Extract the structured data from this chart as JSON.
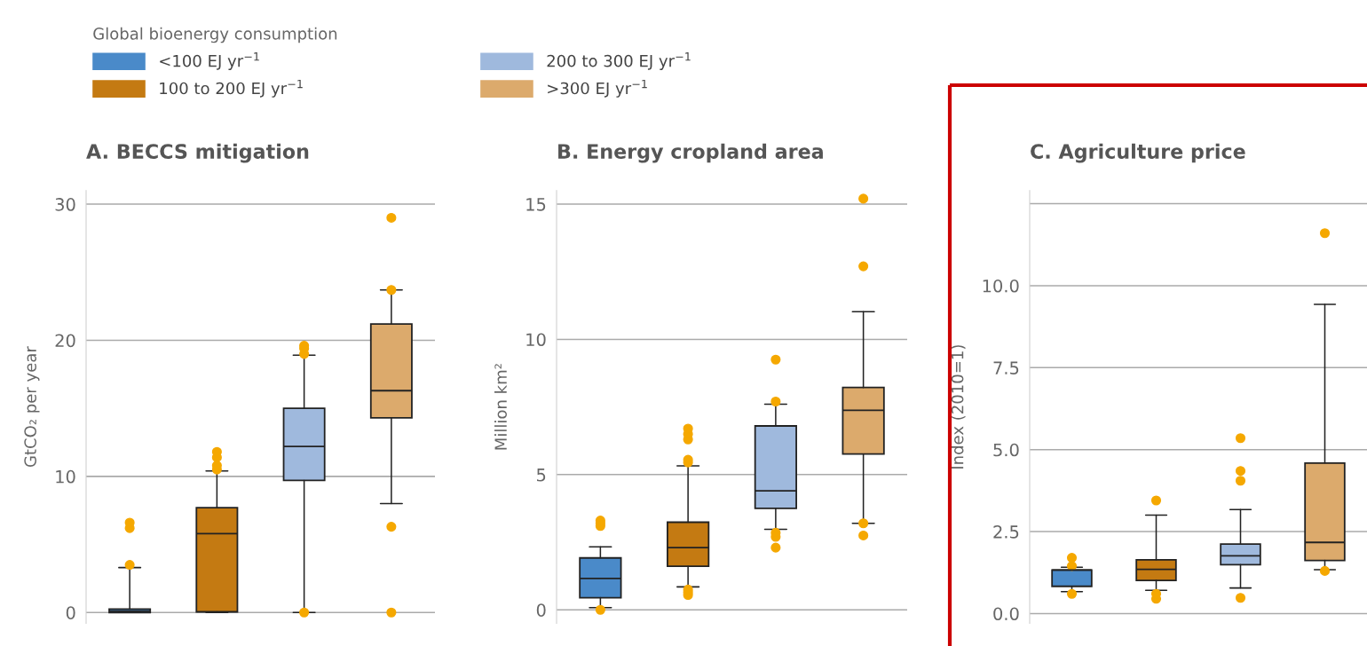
{
  "chart_data": [
    {
      "type": "box",
      "title": "A. BECCS mitigation",
      "ylabel": "GtCO₂ per year",
      "legend": "top right",
      "legend_title": "Global bioenergy consumption",
      "categories": [
        null,
        null,
        null,
        null
      ],
      "grid": "y",
      "tick_labels": "y",
      "ylim": [
        -0.8,
        31
      ],
      "yticks": [
        0,
        10,
        20,
        30
      ],
      "series": [
        {
          "name": "<100 EJ yr$^{−1}$",
          "color": "#4a8ac9",
          "boxes": [
            {
              "low": 0,
              "q1": 0,
              "median": 0.1,
              "q3": 0.25,
              "high": 3.3,
              "outliers": [
                3.5,
                6.2,
                6.6
              ]
            },
            null,
            null,
            null
          ]
        },
        {
          "name": "100 to 200 EJ yr$^{−1}$",
          "color": "#c47a12",
          "boxes": [
            null,
            {
              "low": 0,
              "q1": 0.05,
              "median": 5.8,
              "q3": 7.7,
              "high": 10.4,
              "outliers": [
                10.5,
                10.8,
                11.4,
                11.8
              ]
            },
            null,
            null
          ]
        },
        {
          "name": "200 to 300 EJ yr$^{−1}$",
          "color": "#9fb9dd",
          "boxes": [
            null,
            null,
            {
              "low": 0,
              "q1": 9.7,
              "median": 12.2,
              "q3": 15.0,
              "high": 18.9,
              "outliers": [
                0,
                19.0,
                19.4,
                19.6
              ]
            },
            null
          ]
        },
        {
          "name": ">300 EJ yr$^{−1}$",
          "color": "#dcaa6c",
          "boxes": [
            null,
            null,
            null,
            {
              "low": 8,
              "q1": 14.3,
              "median": 16.3,
              "q3": 21.2,
              "high": 23.7,
              "outliers": [
                0,
                6.3,
                23.7,
                29
              ]
            }
          ]
        }
      ]
    },
    {
      "type": "box",
      "title": "B. Energy cropland area",
      "ylabel": "Million km²",
      "categories": [
        null,
        null,
        null,
        null
      ],
      "grid": "y",
      "tick_labels": "y",
      "ylim": [
        -0.5,
        15.5
      ],
      "yticks": [
        0,
        5,
        10,
        15
      ],
      "series": [
        {
          "color": "#4a8ac9",
          "boxes": [
            {
              "low": 0.08,
              "q1": 0.45,
              "median": 1.16,
              "q3": 1.92,
              "high": 2.33,
              "outliers": [
                0,
                3.1,
                3.2,
                3.3
              ]
            },
            null,
            null,
            null
          ]
        },
        {
          "color": "#c47a12",
          "boxes": [
            null,
            {
              "low": 0.85,
              "q1": 1.61,
              "median": 2.3,
              "q3": 3.24,
              "high": 5.32,
              "outliers": [
                0.55,
                0.65,
                0.75,
                5.45,
                5.55,
                6.3,
                6.5,
                6.7
              ]
            },
            null,
            null
          ]
        },
        {
          "color": "#9fb9dd",
          "boxes": [
            null,
            null,
            {
              "low": 2.98,
              "q1": 3.75,
              "median": 4.4,
              "q3": 6.8,
              "high": 7.6,
              "outliers": [
                2.3,
                2.7,
                2.85,
                7.7,
                9.25
              ]
            },
            null
          ]
        },
        {
          "color": "#dcaa6c",
          "boxes": [
            null,
            null,
            null,
            {
              "low": 3.2,
              "q1": 5.76,
              "median": 7.38,
              "q3": 8.22,
              "high": 11.02,
              "outliers": [
                2.75,
                3.2,
                12.7,
                15.2
              ]
            }
          ]
        }
      ]
    },
    {
      "type": "box",
      "title": "C. Agriculture price",
      "ylabel": "Index (2010=1)",
      "categories": [
        null,
        null,
        null,
        null
      ],
      "grid": "y",
      "tick_labels": "y",
      "ylim": [
        -0.3,
        12.9
      ],
      "yticks": [
        {
          "value": 0,
          "label": "0.0"
        },
        2.5,
        {
          "value": 5,
          "label": "5.0"
        },
        7.5,
        {
          "value": 10,
          "label": "10.0"
        },
        {
          "value": 12.5,
          "label": null
        }
      ],
      "series": [
        {
          "color": "#4a8ac9",
          "boxes": [
            {
              "low": 0.67,
              "q1": 0.83,
              "median": 1.33,
              "q3": 1.33,
              "high": 1.41,
              "outliers": [
                0.6,
                1.45,
                1.7
              ]
            },
            null,
            null,
            null
          ]
        },
        {
          "color": "#c47a12",
          "boxes": [
            null,
            {
              "low": 0.71,
              "q1": 1.01,
              "median": 1.35,
              "q3": 1.64,
              "high": 3.0,
              "outliers": [
                0.45,
                0.6,
                3.45
              ]
            },
            null,
            null
          ]
        },
        {
          "color": "#9fb9dd",
          "boxes": [
            null,
            null,
            {
              "low": 0.78,
              "q1": 1.49,
              "median": 1.76,
              "q3": 2.12,
              "high": 3.17,
              "outliers": [
                0.48,
                4.05,
                4.35,
                5.35
              ]
            },
            null
          ]
        },
        {
          "color": "#dcaa6c",
          "boxes": [
            null,
            null,
            null,
            {
              "low": 1.34,
              "q1": 1.62,
              "median": 2.17,
              "q3": 4.59,
              "high": 9.43,
              "outliers": [
                1.3,
                11.6
              ]
            }
          ]
        }
      ]
    }
  ]
}
